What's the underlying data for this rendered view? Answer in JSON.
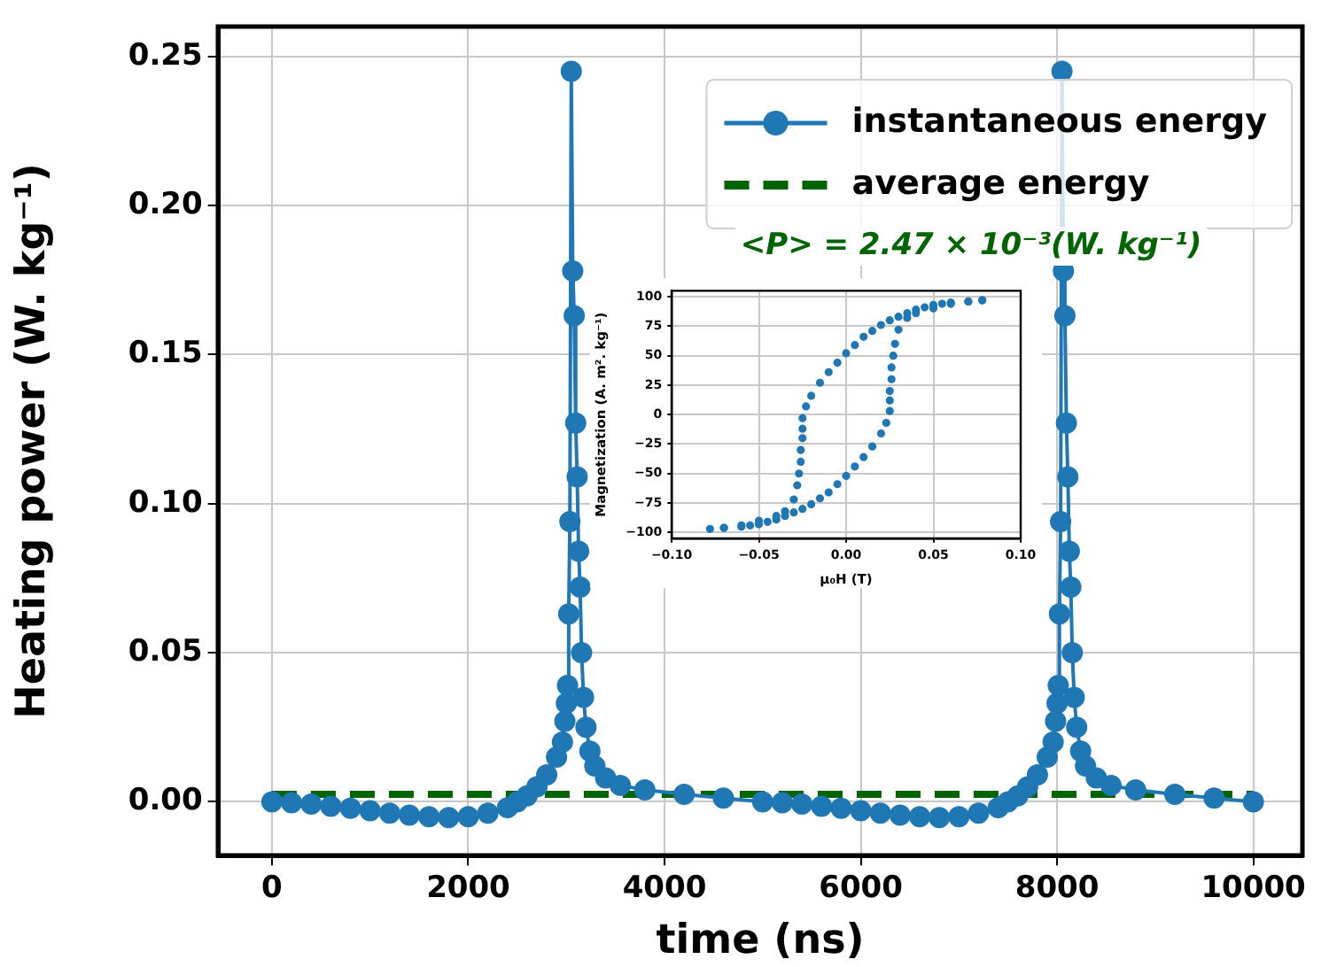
{
  "chart_data": [
    {
      "type": "line",
      "xlabel": "time (ns)",
      "ylabel": "Heating power (W. kg⁻¹)",
      "xlim": [
        -550,
        10500
      ],
      "ylim": [
        -0.018,
        0.26
      ],
      "xticks": [
        0,
        2000,
        4000,
        6000,
        8000,
        10000
      ],
      "yticks": [
        {
          "value": 0,
          "label": "0.00"
        },
        {
          "value": 0.05,
          "label": "0.05"
        },
        {
          "value": 0.1,
          "label": "0.10"
        },
        {
          "value": 0.15,
          "label": "0.15"
        },
        {
          "value": 0.2,
          "label": "0.20"
        },
        {
          "value": 0.25,
          "label": "0.25"
        }
      ],
      "grid": true,
      "legend": "top right",
      "marker": "circle",
      "line_style": "solid",
      "annotations": [
        "<P> = 2.47 × 10⁻³(W. kg⁻¹)"
      ],
      "series": [
        {
          "name": "instantaneous energy",
          "color": "#1f77b4",
          "x": [
            0,
            200,
            400,
            600,
            800,
            1000,
            1200,
            1400,
            1600,
            1800,
            2000,
            2200,
            2400,
            2500,
            2600,
            2700,
            2800,
            2900,
            2960,
            2985,
            3000,
            3012,
            3024,
            3036,
            3050,
            3065,
            3080,
            3095,
            3110,
            3125,
            3140,
            3155,
            3175,
            3200,
            3240,
            3290,
            3400,
            3550,
            3800,
            4200,
            4600,
            5000,
            5200,
            5400,
            5600,
            5800,
            6000,
            6200,
            6400,
            6600,
            6800,
            7000,
            7200,
            7400,
            7500,
            7600,
            7700,
            7800,
            7900,
            7960,
            7985,
            8000,
            8012,
            8024,
            8036,
            8050,
            8065,
            8080,
            8095,
            8110,
            8125,
            8140,
            8155,
            8175,
            8200,
            8240,
            8290,
            8400,
            8550,
            8800,
            9200,
            9600,
            10000
          ],
          "values": [
            0,
            -0.0003,
            -0.0008,
            -0.0015,
            -0.0022,
            -0.003,
            -0.0038,
            -0.0045,
            -0.005,
            -0.0053,
            -0.005,
            -0.0038,
            -0.002,
            0,
            0.002,
            0.005,
            0.009,
            0.015,
            0.02,
            0.027,
            0.033,
            0.039,
            0.063,
            0.094,
            0.245,
            0.178,
            0.163,
            0.127,
            0.109,
            0.084,
            0.072,
            0.05,
            0.035,
            0.025,
            0.017,
            0.012,
            0.008,
            0.0055,
            0.004,
            0.0025,
            0.0012,
            0,
            -0.0003,
            -0.0008,
            -0.0015,
            -0.0022,
            -0.003,
            -0.0038,
            -0.0045,
            -0.005,
            -0.0053,
            -0.005,
            -0.0038,
            -0.002,
            0,
            0.002,
            0.005,
            0.009,
            0.015,
            0.02,
            0.027,
            0.033,
            0.039,
            0.063,
            0.094,
            0.245,
            0.178,
            0.163,
            0.127,
            0.109,
            0.084,
            0.072,
            0.05,
            0.035,
            0.025,
            0.017,
            0.012,
            0.008,
            0.0055,
            0.004,
            0.0025,
            0.0012,
            0
          ]
        },
        {
          "name": "average energy",
          "color": "#006400",
          "marker": "none",
          "line_style": "dashed",
          "x": [
            0,
            10000
          ],
          "values": [
            0.00247,
            0.00247
          ]
        }
      ]
    },
    {
      "type": "scatter",
      "xlabel": "μ₀H (T)",
      "ylabel": "Magnetization (A. m². kg⁻¹)",
      "xlim": [
        -0.1,
        0.1
      ],
      "ylim": [
        -105,
        105
      ],
      "xticks": [
        {
          "value": -0.1,
          "label": "−0.10"
        },
        {
          "value": -0.05,
          "label": "−0.05"
        },
        {
          "value": 0,
          "label": "0.00"
        },
        {
          "value": 0.05,
          "label": "0.05"
        },
        {
          "value": 0.1,
          "label": "0.10"
        }
      ],
      "yticks": [
        {
          "value": -100,
          "label": "−100"
        },
        {
          "value": -75,
          "label": "−75"
        },
        {
          "value": -50,
          "label": "−50"
        },
        {
          "value": -25,
          "label": "−25"
        },
        0,
        25,
        50,
        75,
        100
      ],
      "grid": true,
      "marker": "circle",
      "series": [
        {
          "color": "#1f77b4",
          "x": [
            0.078,
            0.07,
            0.06,
            0.055,
            0.05,
            0.045,
            0.04,
            0.035,
            0.03,
            0.025,
            0.02,
            0.015,
            0.01,
            0.005,
            0,
            -0.005,
            -0.01,
            -0.015,
            -0.02,
            -0.023,
            -0.025,
            -0.025,
            -0.025,
            -0.026,
            -0.026,
            -0.027,
            -0.028,
            -0.03,
            -0.035,
            -0.04,
            -0.05,
            -0.06,
            -0.07,
            -0.078,
            -0.07,
            -0.06,
            -0.055,
            -0.05,
            -0.045,
            -0.04,
            -0.035,
            -0.03,
            -0.025,
            -0.02,
            -0.015,
            -0.01,
            -0.005,
            0,
            0.005,
            0.01,
            0.015,
            0.02,
            0.023,
            0.025,
            0.025,
            0.025,
            0.026,
            0.026,
            0.027,
            0.028,
            0.03,
            0.035,
            0.04,
            0.05,
            0.06,
            0.07,
            0.078
          ],
          "values": [
            97,
            96,
            95,
            94,
            93,
            91,
            89,
            86,
            83,
            80,
            76,
            71,
            66,
            59,
            52,
            44,
            36,
            27,
            16,
            7,
            -3,
            -12,
            -20,
            -30,
            -40,
            -50,
            -60,
            -72,
            -82,
            -86,
            -90,
            -94,
            -96,
            -97,
            -96,
            -95,
            -94,
            -93,
            -91,
            -89,
            -86,
            -83,
            -80,
            -76,
            -71,
            -66,
            -59,
            -52,
            -44,
            -36,
            -27,
            -16,
            -7,
            3,
            12,
            20,
            30,
            40,
            50,
            60,
            72,
            82,
            86,
            90,
            94,
            96,
            97
          ]
        }
      ]
    }
  ]
}
